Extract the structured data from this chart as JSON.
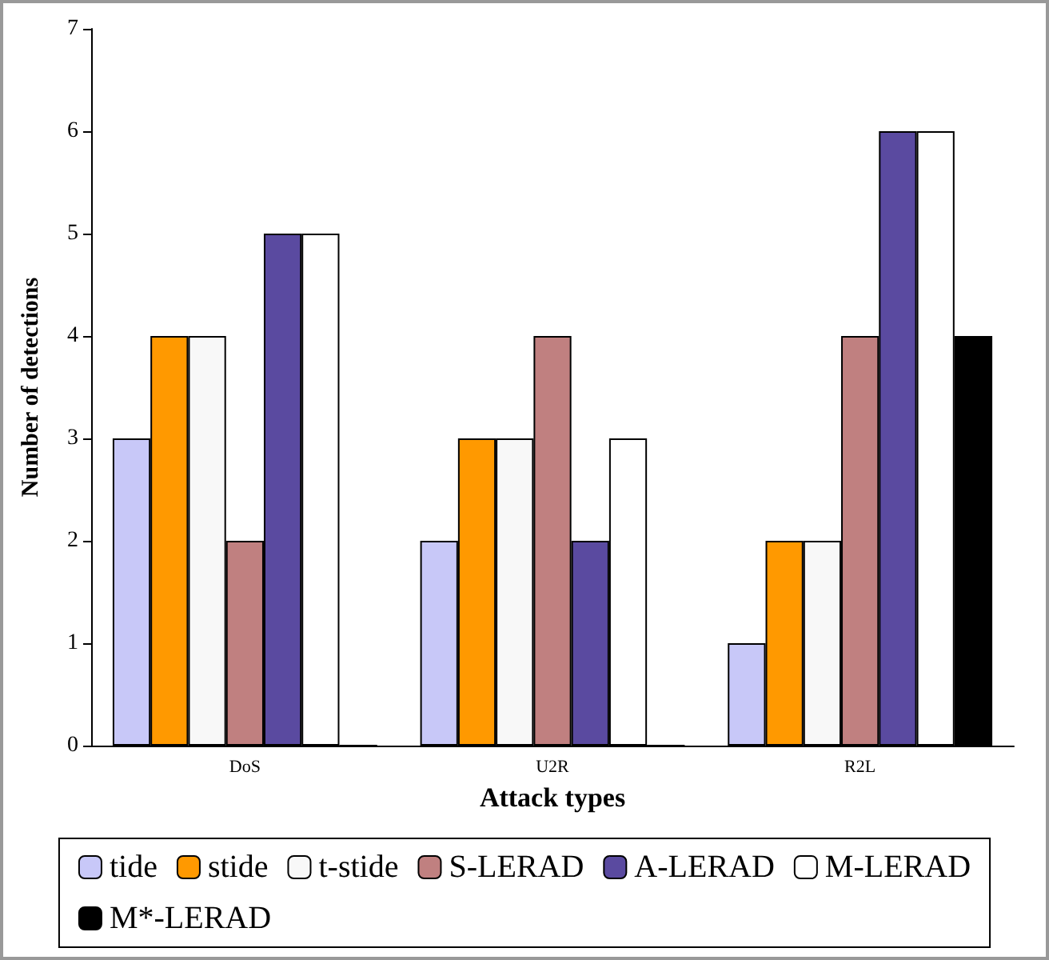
{
  "chart_data": {
    "type": "bar",
    "xlabel": "Attack types",
    "ylabel": "Number of detections",
    "categories": [
      "DoS",
      "U2R",
      "R2L"
    ],
    "series": [
      {
        "name": "tide",
        "color": "#c8c8f8",
        "values": [
          3,
          2,
          1
        ]
      },
      {
        "name": "stide",
        "color": "#ff9900",
        "values": [
          4,
          3,
          2
        ]
      },
      {
        "name": "t-stide",
        "color": "#f8f8f8",
        "values": [
          4,
          3,
          2
        ]
      },
      {
        "name": "S-LERAD",
        "color": "#c08080",
        "values": [
          2,
          4,
          4
        ]
      },
      {
        "name": "A-LERAD",
        "color": "#5a4aa0",
        "values": [
          5,
          2,
          6
        ]
      },
      {
        "name": "M-LERAD",
        "color": "#ffffff",
        "values": [
          5,
          3,
          6
        ]
      },
      {
        "name": "M*-LERAD",
        "color": "#000000",
        "values": [
          0,
          0,
          4
        ]
      }
    ],
    "ylim": [
      0,
      7
    ],
    "yticks": [
      0,
      1,
      2,
      3,
      4,
      5,
      6,
      7
    ],
    "grid": false,
    "legend": "bottom"
  }
}
